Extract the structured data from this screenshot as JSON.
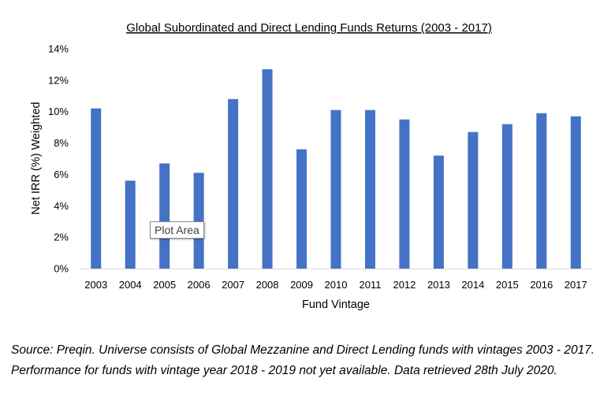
{
  "chart_data": {
    "type": "bar",
    "title": "Global Subordinated and Direct Lending Funds Returns (2003 - 2017)",
    "xlabel": "Fund Vintage",
    "ylabel": "Net IRR (%) Weighted",
    "categories": [
      "2003",
      "2004",
      "2005",
      "2006",
      "2007",
      "2008",
      "2009",
      "2010",
      "2011",
      "2012",
      "2013",
      "2014",
      "2015",
      "2016",
      "2017"
    ],
    "values": [
      10.2,
      5.6,
      6.7,
      6.1,
      10.8,
      12.7,
      7.6,
      10.1,
      10.1,
      9.5,
      7.2,
      8.7,
      9.2,
      9.9,
      9.7
    ],
    "ylim": [
      0,
      14
    ],
    "yticks": [
      0,
      2,
      4,
      6,
      8,
      10,
      12,
      14
    ],
    "ytick_suffix": "%",
    "grid": false,
    "legend": "none",
    "bar_color": "#4472C4"
  },
  "tooltip": {
    "text": "Plot Area"
  },
  "source_note": "Source: Preqin. Universe consists of Global Mezzanine and Direct Lending funds with vintages 2003 - 2017. Performance for funds with vintage year 2018 - 2019 not yet available. Data retrieved 28th July 2020."
}
